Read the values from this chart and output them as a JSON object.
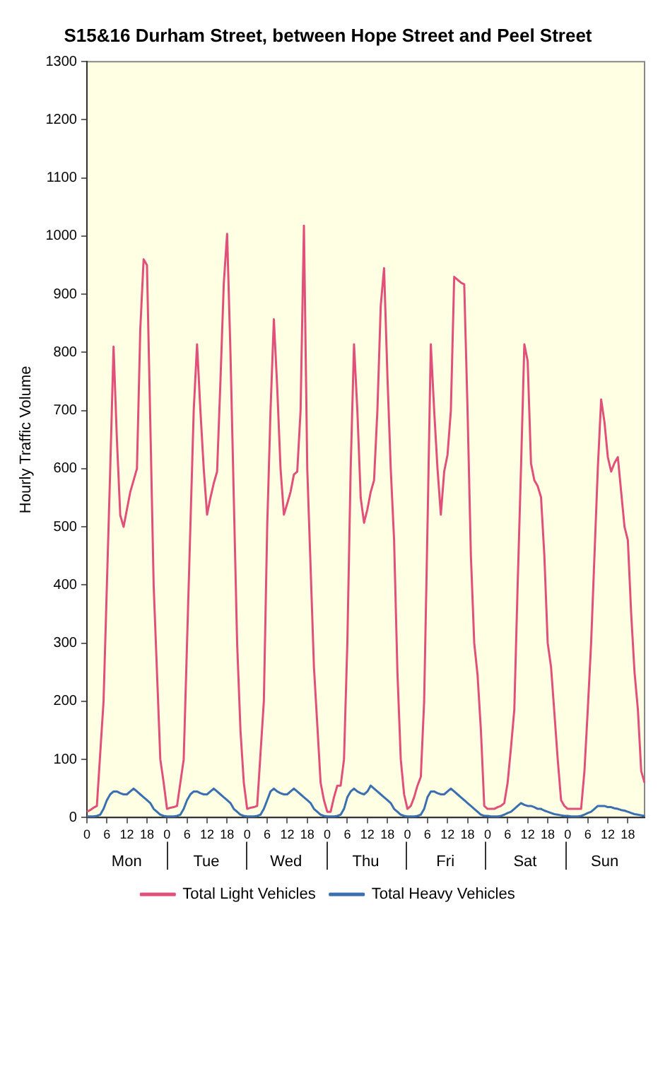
{
  "chart_data": {
    "type": "line",
    "title": "S15&16 Durham Street, between Hope Street and Peel Street",
    "ylabel": "Hourly Traffic Volume",
    "categories": [
      "0",
      null,
      null,
      null,
      null,
      null,
      "6",
      null,
      null,
      null,
      null,
      null,
      "12",
      null,
      null,
      null,
      null,
      null,
      "18",
      null,
      null,
      null,
      null,
      null,
      "0",
      null,
      null,
      null,
      null,
      null,
      "6",
      null,
      null,
      null,
      null,
      null,
      "12",
      null,
      null,
      null,
      null,
      null,
      "18",
      null,
      null,
      null,
      null,
      null,
      "0",
      null,
      null,
      null,
      null,
      null,
      "6",
      null,
      null,
      null,
      null,
      null,
      "12",
      null,
      null,
      null,
      null,
      null,
      "18",
      null,
      null,
      null,
      null,
      null,
      "0",
      null,
      null,
      null,
      null,
      null,
      "6",
      null,
      null,
      null,
      null,
      null,
      "12",
      null,
      null,
      null,
      null,
      null,
      "18",
      null,
      null,
      null,
      null,
      null,
      "0",
      null,
      null,
      null,
      null,
      null,
      "6",
      null,
      null,
      null,
      null,
      null,
      "12",
      null,
      null,
      null,
      null,
      null,
      "18",
      null,
      null,
      null,
      null,
      null,
      "0",
      null,
      null,
      null,
      null,
      null,
      "6",
      null,
      null,
      null,
      null,
      null,
      "12",
      null,
      null,
      null,
      null,
      null,
      "18",
      null,
      null,
      null,
      null,
      null,
      "0",
      null,
      null,
      null,
      null,
      null,
      "6",
      null,
      null,
      null,
      null,
      null,
      "12",
      null,
      null,
      null,
      null,
      null,
      "18",
      null,
      null,
      null,
      null,
      null
    ],
    "annotations": [
      "Mon",
      "Tue",
      "Wed",
      "Thu",
      "Fri",
      "Sat",
      "Sun"
    ],
    "ylim": [
      0,
      1300
    ],
    "yticks": [
      0,
      100,
      200,
      300,
      400,
      500,
      600,
      700,
      800,
      900,
      1000,
      1100,
      1200,
      1300
    ],
    "grid": false,
    "legend": "bottom",
    "marker": "none",
    "line_style": "solid",
    "series": [
      {
        "name": "Total Light Vehicles",
        "color": "#e0507a",
        "values": [
          10,
          13,
          17,
          20,
          110,
          200,
          400,
          600,
          810,
          650,
          520,
          500,
          530,
          560,
          580,
          600,
          840,
          960,
          950,
          680,
          400,
          250,
          100,
          60,
          15,
          17,
          18,
          20,
          60,
          100,
          300,
          500,
          700,
          814,
          700,
          600,
          521,
          550,
          575,
          595,
          750,
          918,
          1004,
          800,
          550,
          300,
          150,
          60,
          15,
          17,
          18,
          20,
          110,
          200,
          500,
          700,
          857,
          740,
          600,
          521,
          540,
          560,
          590,
          595,
          700,
          1018,
          600,
          430,
          259,
          160,
          60,
          30,
          10,
          10,
          35,
          55,
          55,
          100,
          300,
          600,
          814,
          700,
          550,
          507,
          530,
          560,
          580,
          700,
          880,
          945,
          760,
          600,
          477,
          250,
          100,
          40,
          15,
          20,
          35,
          55,
          70,
          200,
          500,
          814,
          700,
          600,
          521,
          595,
          624,
          700,
          930,
          925,
          920,
          917,
          700,
          450,
          300,
          245,
          150,
          20,
          15,
          15,
          15,
          18,
          20,
          25,
          60,
          120,
          186,
          400,
          600,
          814,
          785,
          609,
          580,
          570,
          551,
          450,
          300,
          259,
          180,
          100,
          30,
          20,
          15,
          15,
          15,
          15,
          15,
          80,
          186,
          300,
          450,
          600,
          719,
          680,
          620,
          595,
          610,
          620,
          560,
          500,
          477,
          350,
          250,
          186,
          80,
          60
        ]
      },
      {
        "name": "Total Heavy Vehicles",
        "color": "#3a6fb0",
        "values": [
          2,
          2,
          2,
          3,
          5,
          15,
          30,
          40,
          45,
          45,
          42,
          40,
          40,
          45,
          50,
          45,
          40,
          35,
          30,
          25,
          15,
          10,
          5,
          3,
          2,
          2,
          2,
          3,
          5,
          15,
          30,
          40,
          45,
          45,
          42,
          40,
          40,
          45,
          50,
          45,
          40,
          35,
          30,
          25,
          15,
          10,
          5,
          3,
          2,
          2,
          2,
          3,
          5,
          15,
          30,
          45,
          50,
          45,
          42,
          40,
          40,
          45,
          50,
          45,
          40,
          35,
          30,
          25,
          15,
          10,
          5,
          3,
          2,
          2,
          2,
          3,
          5,
          15,
          35,
          45,
          50,
          45,
          42,
          40,
          45,
          55,
          50,
          45,
          40,
          35,
          30,
          25,
          15,
          10,
          5,
          3,
          2,
          2,
          2,
          3,
          5,
          15,
          35,
          45,
          45,
          42,
          40,
          40,
          45,
          50,
          45,
          40,
          35,
          30,
          25,
          20,
          15,
          10,
          5,
          3,
          3,
          2,
          2,
          2,
          3,
          5,
          8,
          10,
          15,
          20,
          25,
          22,
          20,
          20,
          18,
          15,
          15,
          12,
          10,
          8,
          6,
          5,
          4,
          3,
          3,
          2,
          2,
          2,
          3,
          5,
          8,
          10,
          15,
          20,
          20,
          20,
          18,
          18,
          16,
          15,
          13,
          12,
          10,
          8,
          6,
          5,
          4,
          3
        ]
      }
    ]
  }
}
